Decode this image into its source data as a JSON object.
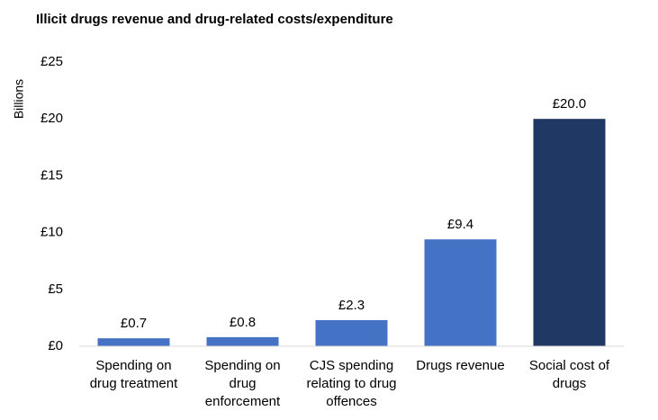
{
  "chart_data": {
    "type": "bar",
    "title": "Illicit drugs revenue and drug-related costs/expenditure",
    "y_label": "Billions",
    "categories": [
      "Spending on drug treatment",
      "Spending on drug enforcement",
      "CJS spending relating to drug offences",
      "Drugs revenue",
      "Social cost of drugs"
    ],
    "values": [
      0.7,
      0.8,
      2.3,
      9.4,
      20
    ],
    "value_labels": [
      "£0.7",
      "£0.8",
      "£2.3",
      "£9.4",
      "£20.0"
    ],
    "colors": [
      "#4472c4",
      "#4472c4",
      "#4472c4",
      "#4472c4",
      "#203864"
    ],
    "ylim": [
      0,
      25
    ],
    "yticks": [
      {
        "value": 0,
        "label": "£0"
      },
      {
        "value": 5,
        "label": "£5"
      },
      {
        "value": 10,
        "label": "£10"
      },
      {
        "value": 15,
        "label": "£15"
      },
      {
        "value": 20,
        "label": "£20"
      },
      {
        "value": 25,
        "label": "£25"
      }
    ],
    "grid": false
  }
}
